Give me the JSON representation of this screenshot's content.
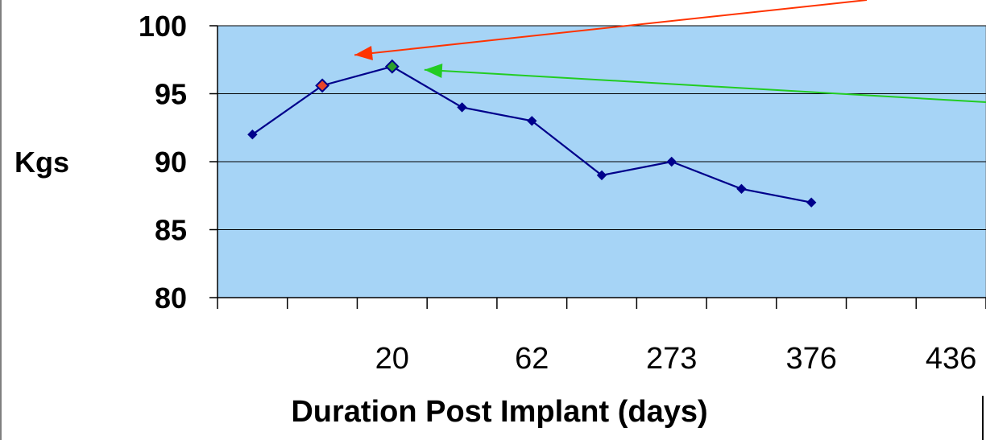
{
  "chart_data": {
    "type": "line",
    "title": "",
    "xlabel": "Duration Post Implant (days)",
    "ylabel": "Kgs",
    "ylim": [
      80,
      100
    ],
    "yticks": [
      80,
      85,
      90,
      95,
      100
    ],
    "x_tick_labels": [
      "",
      "",
      "20",
      "",
      "62",
      "",
      "273",
      "",
      "376",
      "",
      "436"
    ],
    "grid": "horizontal",
    "plot_background": "#a6d4f6",
    "series": [
      {
        "color": "#00008b",
        "values": [
          92,
          95.6,
          97,
          94,
          93,
          89,
          90,
          88,
          87
        ]
      }
    ],
    "highlighted_points": [
      {
        "index": 1,
        "color": "#e8462a"
      },
      {
        "index": 2,
        "color": "#2ca02c"
      }
    ],
    "annotations": [
      {
        "type": "arrow",
        "color": "#ff3300",
        "target_index": 1
      },
      {
        "type": "arrow",
        "color": "#22cc22",
        "target_index": 2
      }
    ]
  }
}
